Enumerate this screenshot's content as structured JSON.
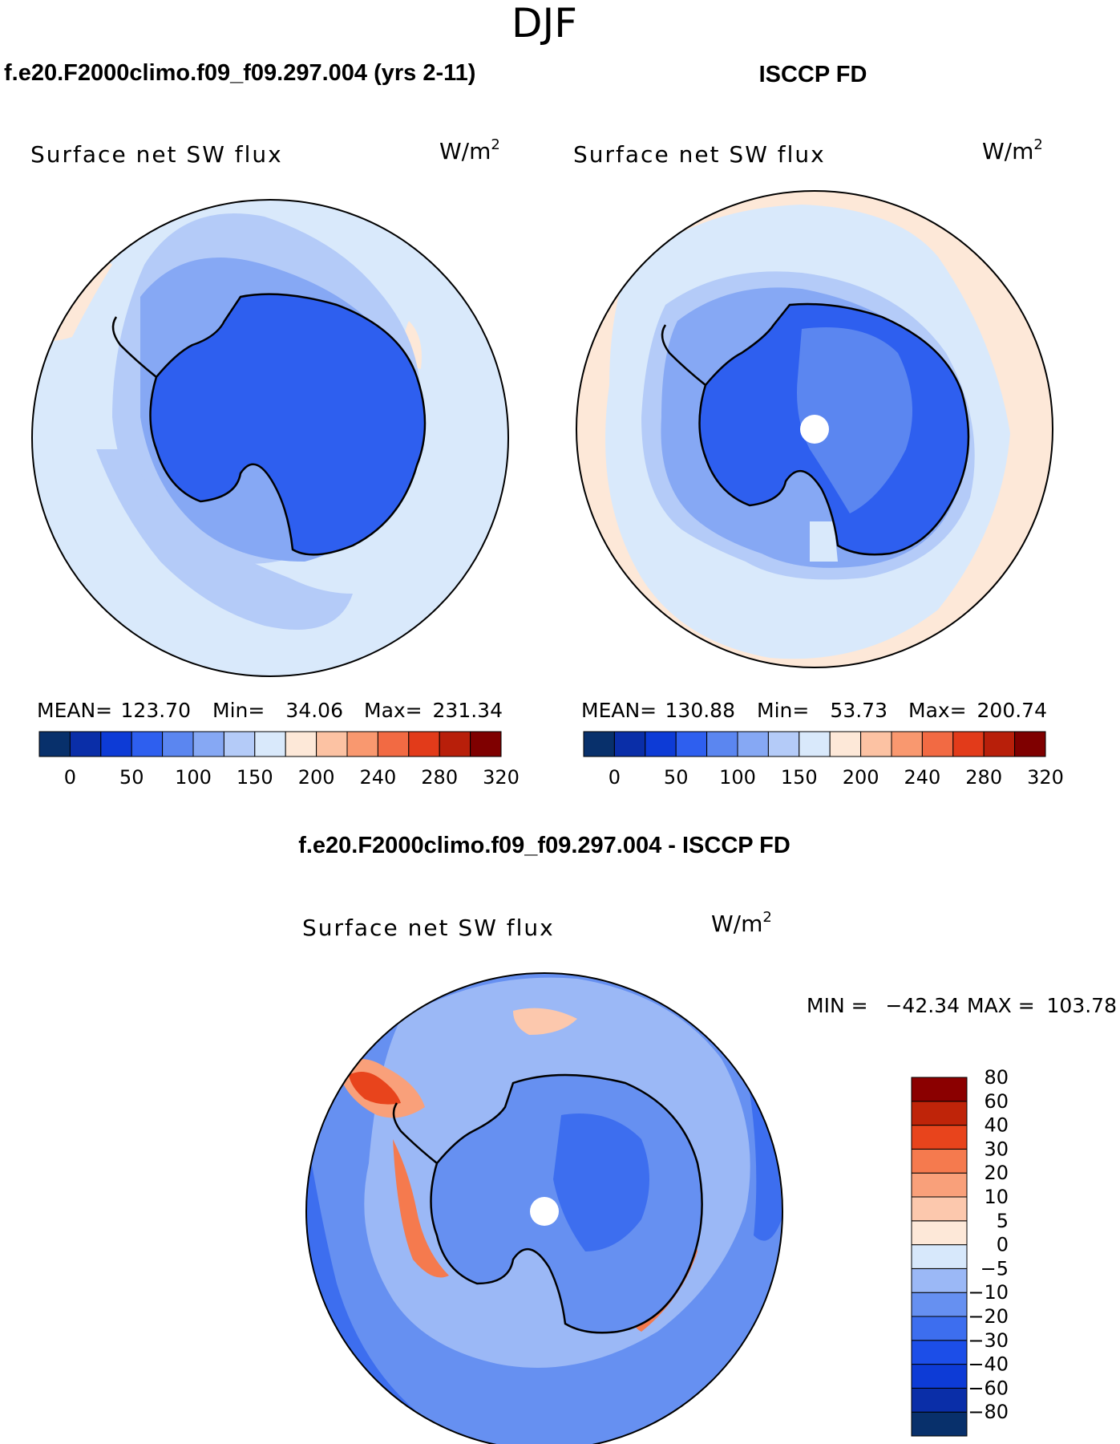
{
  "figure": {
    "season": "DJF"
  },
  "chart_data": [
    {
      "type": "heatmap",
      "map": "south-polar-stereographic",
      "title": "f.e20.F2000climo.f09_f09.297.004 (yrs 2-11)",
      "variable": "Surface net SW flux",
      "units": "W/m",
      "units_exp": "2",
      "stats": {
        "mean_label": "MEAN=",
        "mean": "123.70",
        "min_label": "Min=",
        "min": "34.06",
        "max_label": "Max=",
        "max": "231.34"
      },
      "colorbar": {
        "orientation": "horizontal",
        "levels": [
          0,
          25,
          50,
          75,
          100,
          125,
          150,
          175,
          200,
          220,
          240,
          260,
          280,
          300,
          320
        ],
        "tick_labels": [
          "0",
          "50",
          "100",
          "150",
          "200",
          "240",
          "280",
          "320"
        ],
        "colors": [
          "#08306b",
          "#0a2ea8",
          "#0d3bd6",
          "#2e5fef",
          "#5b86f0",
          "#86a8f4",
          "#b4cbf8",
          "#d9e9fb",
          "#fde8d8",
          "#fcc2a3",
          "#f9986f",
          "#f26a43",
          "#e23b1a",
          "#b81f0a",
          "#7f0000"
        ]
      }
    },
    {
      "type": "heatmap",
      "map": "south-polar-stereographic",
      "title": "ISCCP FD",
      "variable": "Surface net SW flux",
      "units": "W/m",
      "units_exp": "2",
      "stats": {
        "mean_label": "MEAN=",
        "mean": "130.88",
        "min_label": "Min=",
        "min": "53.73",
        "max_label": "Max=",
        "max": "200.74"
      },
      "colorbar": {
        "orientation": "horizontal",
        "levels": [
          0,
          25,
          50,
          75,
          100,
          125,
          150,
          175,
          200,
          220,
          240,
          260,
          280,
          300,
          320
        ],
        "tick_labels": [
          "0",
          "50",
          "100",
          "150",
          "200",
          "240",
          "280",
          "320"
        ],
        "colors": [
          "#08306b",
          "#0a2ea8",
          "#0d3bd6",
          "#2e5fef",
          "#5b86f0",
          "#86a8f4",
          "#b4cbf8",
          "#d9e9fb",
          "#fde8d8",
          "#fcc2a3",
          "#f9986f",
          "#f26a43",
          "#e23b1a",
          "#b81f0a",
          "#7f0000"
        ]
      }
    },
    {
      "type": "heatmap",
      "map": "south-polar-stereographic",
      "title": "f.e20.F2000climo.f09_f09.297.004 - ISCCP FD",
      "variable": "Surface net SW flux",
      "units": "W/m",
      "units_exp": "2",
      "stats": {
        "min_label": "MIN =",
        "min": "−42.34",
        "max_label": "MAX =",
        "max": "103.78"
      },
      "colorbar": {
        "orientation": "vertical",
        "levels": [
          -80,
          -60,
          -40,
          -30,
          -20,
          -10,
          -5,
          0,
          5,
          10,
          20,
          30,
          40,
          60,
          80
        ],
        "tick_labels": [
          "−80",
          "−60",
          "−40",
          "−30",
          "−20",
          "−10",
          "−5",
          "0",
          "5",
          "10",
          "20",
          "30",
          "40",
          "60",
          "80"
        ],
        "colors": [
          "#08306b",
          "#0a2ea8",
          "#0d3bd6",
          "#1c4ee8",
          "#3d6eef",
          "#6690f1",
          "#9bb8f6",
          "#d7e8fb",
          "#fde8d8",
          "#fcc8ad",
          "#f9a07a",
          "#f57a4e",
          "#e8441c",
          "#bf2409",
          "#8b0000"
        ]
      }
    }
  ]
}
